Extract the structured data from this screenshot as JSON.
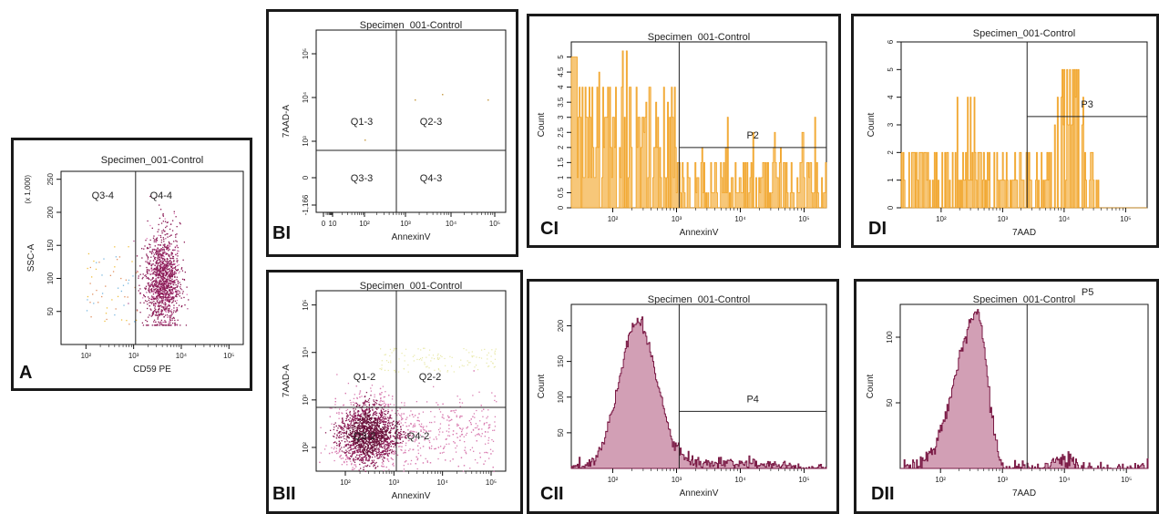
{
  "colors": {
    "dot_plot": "#8a1a55",
    "histogram_fill": "#d29fb5",
    "histogram_line": "#7a1a45",
    "orange_fill": "#f7c779",
    "orange_line": "#f0a020",
    "gate_line": "#222222",
    "frame": "#1a1a1a"
  },
  "panels": [
    {
      "id": "A",
      "label": "A",
      "title": "Specimen_001-Control",
      "type": "scatter",
      "xlabel": "CD59 PE",
      "ylabel": "SSC-A",
      "y_multiplier": "(x 1,000)",
      "xticks": [
        "10²",
        "10³",
        "10⁴",
        "10⁵"
      ],
      "yticks": [
        "50",
        "100",
        "150",
        "200",
        "250"
      ],
      "gates": [
        "Q3-4",
        "Q4-4"
      ]
    },
    {
      "id": "BI",
      "label": "BI",
      "title": "Specimen_001-Control",
      "type": "scatter",
      "xlabel": "AnnexinV",
      "ylabel": "7AAD-A",
      "xticks": [
        "0",
        "10",
        "10²",
        "10³",
        "10⁴",
        "10⁵"
      ],
      "yticks": [
        "-1,166",
        "0",
        "10³",
        "10⁴",
        "10⁵"
      ],
      "gates": [
        "Q1-3",
        "Q2-3",
        "Q3-3",
        "Q4-3"
      ]
    },
    {
      "id": "BII",
      "label": "BII",
      "title": "Specimen_001-Control",
      "type": "scatter",
      "xlabel": "AnnexinV",
      "ylabel": "7AAD-A",
      "xticks": [
        "10²",
        "10³",
        "10⁴",
        "10⁵"
      ],
      "yticks": [
        "10²",
        "10³",
        "10⁴",
        "10⁵"
      ],
      "gates": [
        "Q1-2",
        "Q2-2",
        "Q3-2",
        "Q4-2"
      ]
    },
    {
      "id": "CI",
      "label": "CI",
      "title": "Specimen_001-Control",
      "type": "histogram",
      "xlabel": "AnnexinV",
      "ylabel": "Count",
      "xticks": [
        "10²",
        "10³",
        "10⁴",
        "10⁵"
      ],
      "yticks": [
        "0",
        "0.5",
        "1",
        "1.5",
        "2",
        "2.5",
        "3",
        "3.5",
        "4",
        "4.5",
        "5"
      ],
      "gates": [
        "P2"
      ]
    },
    {
      "id": "DI",
      "label": "DI",
      "title": "Specimen_001-Control",
      "type": "histogram",
      "xlabel": "7AAD",
      "ylabel": "Count",
      "xticks": [
        "10²",
        "10³",
        "10⁴",
        "10⁵"
      ],
      "yticks": [
        "0",
        "1",
        "2",
        "3",
        "4",
        "5",
        "6"
      ],
      "gates": [
        "P3"
      ]
    },
    {
      "id": "CII",
      "label": "CII",
      "title": "Specimen_001-Control",
      "type": "histogram",
      "xlabel": "AnnexinV",
      "ylabel": "Count",
      "xticks": [
        "10²",
        "10³",
        "10⁴",
        "10⁵"
      ],
      "yticks": [
        "50",
        "100",
        "150",
        "200"
      ],
      "gates": [
        "P4"
      ]
    },
    {
      "id": "DII",
      "label": "DII",
      "title": "Specimen_001-Control",
      "type": "histogram",
      "xlabel": "7AAD",
      "ylabel": "Count",
      "xticks": [
        "10²",
        "10³",
        "10⁴",
        "10⁵"
      ],
      "yticks": [
        "50",
        "100"
      ],
      "gates": [
        "P5"
      ]
    }
  ],
  "chart_data": [
    {
      "type": "scatter",
      "panel": "A",
      "title": "Specimen_001-Control",
      "xlabel": "CD59 PE",
      "ylabel": "SSC-A",
      "x_scale": "log",
      "xlim": [
        30,
        200000
      ],
      "ylim": [
        0,
        262
      ],
      "quadrant_x": 1100,
      "quadrant_y": 262,
      "cluster_center": [
        4000,
        90
      ],
      "cluster_spread": "dense, roughly 1.5x10³–1.2x10⁴ on x, 40–230 on y",
      "gates": [
        "Q3-4",
        "Q4-4"
      ]
    },
    {
      "type": "scatter",
      "panel": "BI",
      "title": "Specimen_001-Control",
      "xlabel": "AnnexinV",
      "ylabel": "7AAD-A",
      "x_scale": "log",
      "y_scale": "log",
      "quadrant_x": 500,
      "quadrant_y": 800,
      "events": "very sparse",
      "gates": [
        "Q1-3",
        "Q2-3",
        "Q3-3",
        "Q4-3"
      ]
    },
    {
      "type": "scatter",
      "panel": "BII",
      "title": "Specimen_001-Control",
      "xlabel": "AnnexinV",
      "ylabel": "7AAD-A",
      "x_scale": "log",
      "y_scale": "log",
      "quadrant_x": 500,
      "quadrant_y": 800,
      "cluster_center": [
        300,
        200
      ],
      "cluster_spread": "dense around 10²–10³ on x, 40–900 on y, tail toward 10⁵ on x",
      "gates": [
        "Q1-2",
        "Q2-2",
        "Q3-2",
        "Q4-2"
      ]
    },
    {
      "type": "bar",
      "panel": "CI",
      "title": "Specimen_001-Control",
      "xlabel": "AnnexinV",
      "ylabel": "Count",
      "x_scale": "log",
      "ylim": [
        0,
        5.5
      ],
      "gate": {
        "name": "P2",
        "x_start": 1100,
        "x_end": 100000,
        "level": 2.0
      },
      "profile": "sparse bins, counts 0–5, higher density 30–800"
    },
    {
      "type": "bar",
      "panel": "DI",
      "title": "Specimen_001-Control",
      "xlabel": "7AAD",
      "ylabel": "Count",
      "x_scale": "log",
      "ylim": [
        0,
        6
      ],
      "gate": {
        "name": "P3",
        "x_start": 2500,
        "x_end": 100000,
        "level": 3.3
      },
      "profile": "sparse bins, counts 0–6, peak near 1.5x10⁴"
    },
    {
      "type": "area",
      "panel": "CII",
      "title": "Specimen_001-Control",
      "xlabel": "AnnexinV",
      "ylabel": "Count",
      "x_scale": "log",
      "ylim": [
        0,
        230
      ],
      "gate": {
        "name": "P4",
        "x_start": 1100,
        "x_end": 100000,
        "level": 80
      },
      "peak_x": 250,
      "peak_y": 205
    },
    {
      "type": "area",
      "panel": "DII",
      "title": "Specimen_001-Control",
      "xlabel": "7AAD",
      "ylabel": "Count",
      "x_scale": "log",
      "ylim": [
        0,
        125
      ],
      "gate": {
        "name": "P5",
        "x_start": 2500,
        "x_end": 300000,
        "level": 125
      },
      "peak_x": 400,
      "peak_y": 118,
      "secondary_peak_x": 10000,
      "secondary_peak_y": 8
    }
  ]
}
